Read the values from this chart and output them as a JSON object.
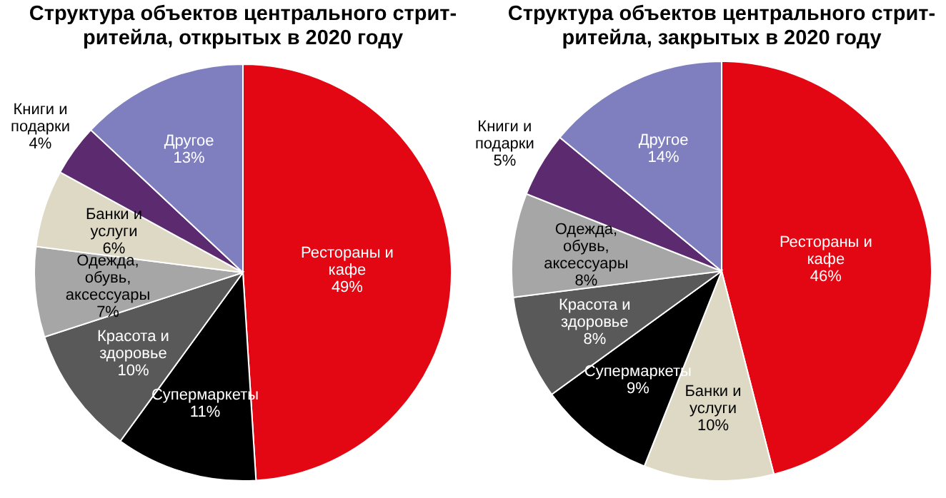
{
  "chart_data": [
    {
      "type": "pie",
      "title": "Структура объектов центрального стрит-ритейла, открытых в 2020 году",
      "categories": [
        "Рестораны и кафе",
        "Супермаркеты",
        "Красота и здоровье",
        "Одежда, обувь, аксессуары",
        "Банки и услуги",
        "Книги и подарки",
        "Другое"
      ],
      "values": [
        49,
        11,
        10,
        7,
        6,
        4,
        13
      ],
      "value_labels": [
        "49%",
        "11%",
        "10%",
        "7%",
        "6%",
        "4%",
        "13%"
      ],
      "colors": [
        "#e30613",
        "#000000",
        "#595959",
        "#a6a6a6",
        "#ddd9c4",
        "#5c2a6e",
        "#7f7fbf"
      ]
    },
    {
      "type": "pie",
      "title": "Структура объектов центрального стрит-ритейла, закрытых в 2020 году",
      "categories": [
        "Рестораны и кафе",
        "Банки и услуги",
        "Супермаркеты",
        "Красота и здоровье",
        "Одежда, обувь, аксессуары",
        "Книги и подарки",
        "Другое"
      ],
      "values": [
        46,
        10,
        9,
        8,
        8,
        5,
        14
      ],
      "value_labels": [
        "46%",
        "10%",
        "9%",
        "8%",
        "8%",
        "5%",
        "14%"
      ],
      "colors": [
        "#e30613",
        "#ddd9c4",
        "#000000",
        "#595959",
        "#a6a6a6",
        "#5c2a6e",
        "#7f7fbf"
      ]
    }
  ]
}
